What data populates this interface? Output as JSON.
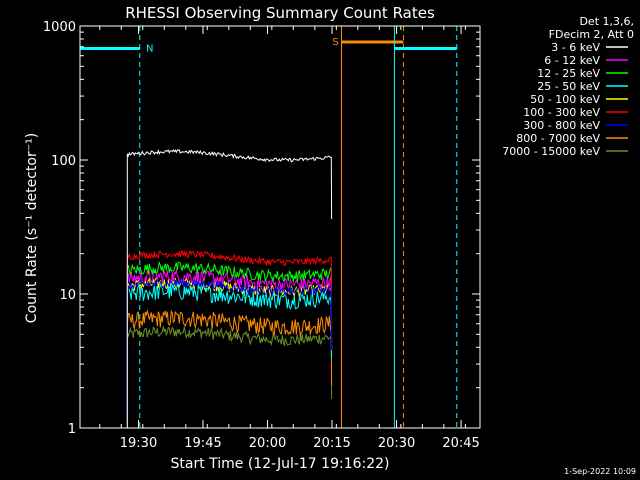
{
  "chart_data": {
    "type": "line",
    "title": "RHESSI Observing Summary Count Rates",
    "xlabel": "Start Time (12-Jul-17 19:16:22)",
    "ylabel": "Count Rate (s⁻¹ detector⁻¹)",
    "yscale": "log",
    "ylim": [
      1,
      1000
    ],
    "xlim_minutes_since_start": [
      0,
      93
    ],
    "x_ticks": [
      {
        "label": "19:30",
        "minute": 13.6
      },
      {
        "label": "19:45",
        "minute": 28.6
      },
      {
        "label": "20:00",
        "minute": 43.6
      },
      {
        "label": "20:15",
        "minute": 58.6
      },
      {
        "label": "20:30",
        "minute": 73.6
      },
      {
        "label": "20:45",
        "minute": 88.6
      }
    ],
    "y_ticks": [
      {
        "label": "1",
        "value": 1
      },
      {
        "label": "10",
        "value": 10
      },
      {
        "label": "100",
        "value": 100
      },
      {
        "label": "1000",
        "value": 1000
      }
    ],
    "legend": {
      "header": [
        "Det 1,3,6,",
        "FDecim 2, Att 0"
      ],
      "placement": "right"
    },
    "series": [
      {
        "name": "3 - 6 keV",
        "color": "#ffffff",
        "level": 110,
        "noise": 0.03
      },
      {
        "name": "6 - 12 keV",
        "color": "#ff00ff",
        "level": 13,
        "noise": 0.12
      },
      {
        "name": "12 - 25 keV",
        "color": "#00ff00",
        "level": 15,
        "noise": 0.1
      },
      {
        "name": "25 - 50 keV",
        "color": "#00ffff",
        "level": 10,
        "noise": 0.15
      },
      {
        "name": "50 - 100 keV",
        "color": "#ffff00",
        "level": 11.5,
        "noise": 0.1
      },
      {
        "name": "100 - 300 keV",
        "color": "#ff0000",
        "level": 19,
        "noise": 0.06
      },
      {
        "name": "300 - 800 keV",
        "color": "#0000ff",
        "level": 11.5,
        "noise": 0.07
      },
      {
        "name": "800 - 7000 keV",
        "color": "#ff8c00",
        "level": 6.3,
        "noise": 0.15
      },
      {
        "name": "7000 - 15000 keV",
        "color": "#6b8e23",
        "level": 5,
        "noise": 0.1
      }
    ],
    "data_interval_minutes": [
      11,
      58.5
    ],
    "annotations": [
      {
        "label": "N",
        "color": "#00ffff",
        "interval": [
          0,
          13.9
        ],
        "bar_level": 680
      },
      {
        "label": "S",
        "color": "#ff8c00",
        "interval": [
          60.8,
          75.2
        ],
        "bar_level": 760
      },
      {
        "label": "",
        "color": "#00ffff",
        "interval": [
          73.1,
          87.6
        ],
        "bar_level": 680
      }
    ],
    "footer_timestamp": "1-Sep-2022 10:09"
  }
}
